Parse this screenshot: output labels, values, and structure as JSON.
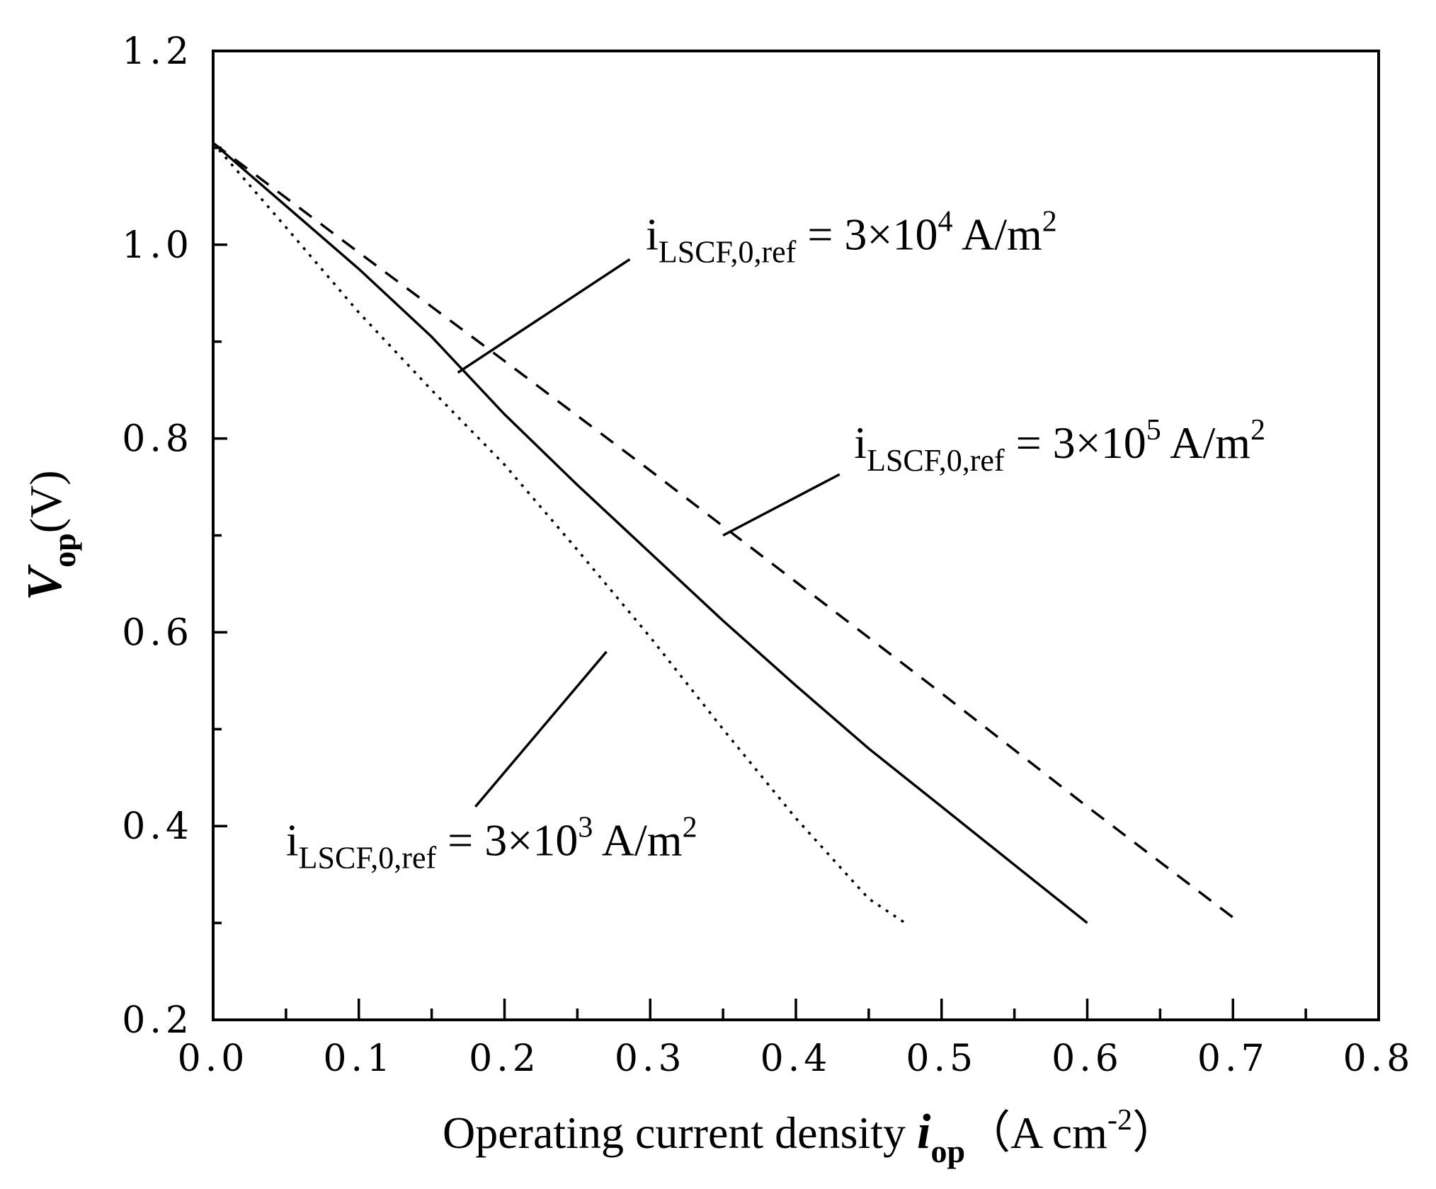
{
  "chart_data": {
    "type": "line",
    "xlabel": {
      "text": "Operating current density ",
      "var": "i",
      "sub": "op",
      "unit_prefix": "（A cm",
      "unit_sup": "-2",
      "unit_suffix": "）"
    },
    "ylabel": {
      "var": "V",
      "sub": "op",
      "unit": "(V)"
    },
    "xlim": [
      0.0,
      0.8
    ],
    "ylim": [
      0.2,
      1.2
    ],
    "xticks": [
      0.0,
      0.1,
      0.2,
      0.3,
      0.4,
      0.5,
      0.6,
      0.7,
      0.8
    ],
    "xtick_labels": [
      "0.0",
      "0.1",
      "0.2",
      "0.3",
      "0.4",
      "0.5",
      "0.6",
      "0.7",
      "0.8"
    ],
    "xminor": [
      0.05,
      0.15,
      0.25,
      0.35,
      0.45,
      0.55,
      0.65,
      0.75
    ],
    "yticks": [
      0.2,
      0.4,
      0.6,
      0.8,
      1.0,
      1.2
    ],
    "ytick_labels": [
      "0.2",
      "0.4",
      "0.6",
      "0.8",
      "1.0",
      "1.2"
    ],
    "yminor": [
      0.3,
      0.5,
      0.7,
      0.9,
      1.1
    ],
    "grid": false,
    "series": [
      {
        "style": "dashed",
        "x": [
          0.0,
          0.1,
          0.2,
          0.3,
          0.4,
          0.5,
          0.6,
          0.705
        ],
        "y": [
          1.105,
          0.992,
          0.88,
          0.767,
          0.652,
          0.537,
          0.42,
          0.3
        ]
      },
      {
        "style": "solid",
        "x": [
          0.0,
          0.05,
          0.1,
          0.15,
          0.2,
          0.25,
          0.3,
          0.35,
          0.4,
          0.45,
          0.5,
          0.55,
          0.6
        ],
        "y": [
          1.105,
          1.04,
          0.975,
          0.905,
          0.825,
          0.752,
          0.682,
          0.612,
          0.545,
          0.48,
          0.42,
          0.36,
          0.3
        ]
      },
      {
        "style": "dotted",
        "x": [
          0.0,
          0.05,
          0.1,
          0.15,
          0.2,
          0.25,
          0.3,
          0.35,
          0.4,
          0.45,
          0.475
        ],
        "y": [
          1.105,
          1.018,
          0.93,
          0.85,
          0.773,
          0.685,
          0.595,
          0.5,
          0.408,
          0.325,
          0.3
        ]
      }
    ],
    "annotations": [
      {
        "main": "i",
        "sub": "LSCF,0,ref",
        "eq": " = 3×10",
        "sup": "4",
        "unit": " A/m",
        "unit_sup": "2",
        "text_pos": [
          0.297,
          0.995
        ],
        "line": [
          [
            0.168,
            0.868
          ],
          [
            0.286,
            0.985
          ]
        ]
      },
      {
        "main": "i",
        "sub": "LSCF,0,ref",
        "eq": " = 3×10",
        "sup": "5",
        "unit": " A/m",
        "unit_sup": "2",
        "text_pos": [
          0.44,
          0.78
        ],
        "line": [
          [
            0.35,
            0.7
          ],
          [
            0.43,
            0.763
          ]
        ]
      },
      {
        "main": "i",
        "sub": "LSCF,0,ref",
        "eq": " = 3×10",
        "sup": "3",
        "unit": " A/m",
        "unit_sup": "2",
        "text_pos": [
          0.05,
          0.37
        ],
        "line": [
          [
            0.27,
            0.58
          ],
          [
            0.18,
            0.42
          ]
        ]
      }
    ]
  }
}
